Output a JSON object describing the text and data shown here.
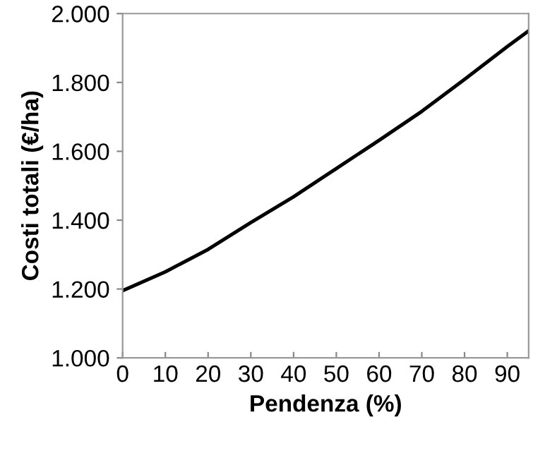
{
  "chart_data": {
    "type": "line",
    "xlabel": "Pendenza (%)",
    "ylabel": "Costi totali (€/ha)",
    "x": [
      0,
      10,
      20,
      30,
      40,
      50,
      60,
      70,
      80,
      90,
      95
    ],
    "series": [
      {
        "color": "#000000",
        "values": [
          1195,
          1250,
          1315,
          1393,
          1468,
          1550,
          1632,
          1716,
          1809,
          1904,
          1950
        ]
      }
    ],
    "xlim": [
      0,
      95
    ],
    "ylim": [
      1000,
      2000
    ],
    "xticks": [
      0,
      10,
      20,
      30,
      40,
      50,
      60,
      70,
      80,
      90
    ],
    "yticks": [
      {
        "value": 1000,
        "label": "1.000"
      },
      {
        "value": 1200,
        "label": "1.200"
      },
      {
        "value": 1400,
        "label": "1.400"
      },
      {
        "value": 1600,
        "label": "1.600"
      },
      {
        "value": 1800,
        "label": "1.800"
      },
      {
        "value": 2000,
        "label": "2.000"
      }
    ],
    "grid": false,
    "legend": false,
    "marker": "none",
    "line_style": "solid"
  }
}
